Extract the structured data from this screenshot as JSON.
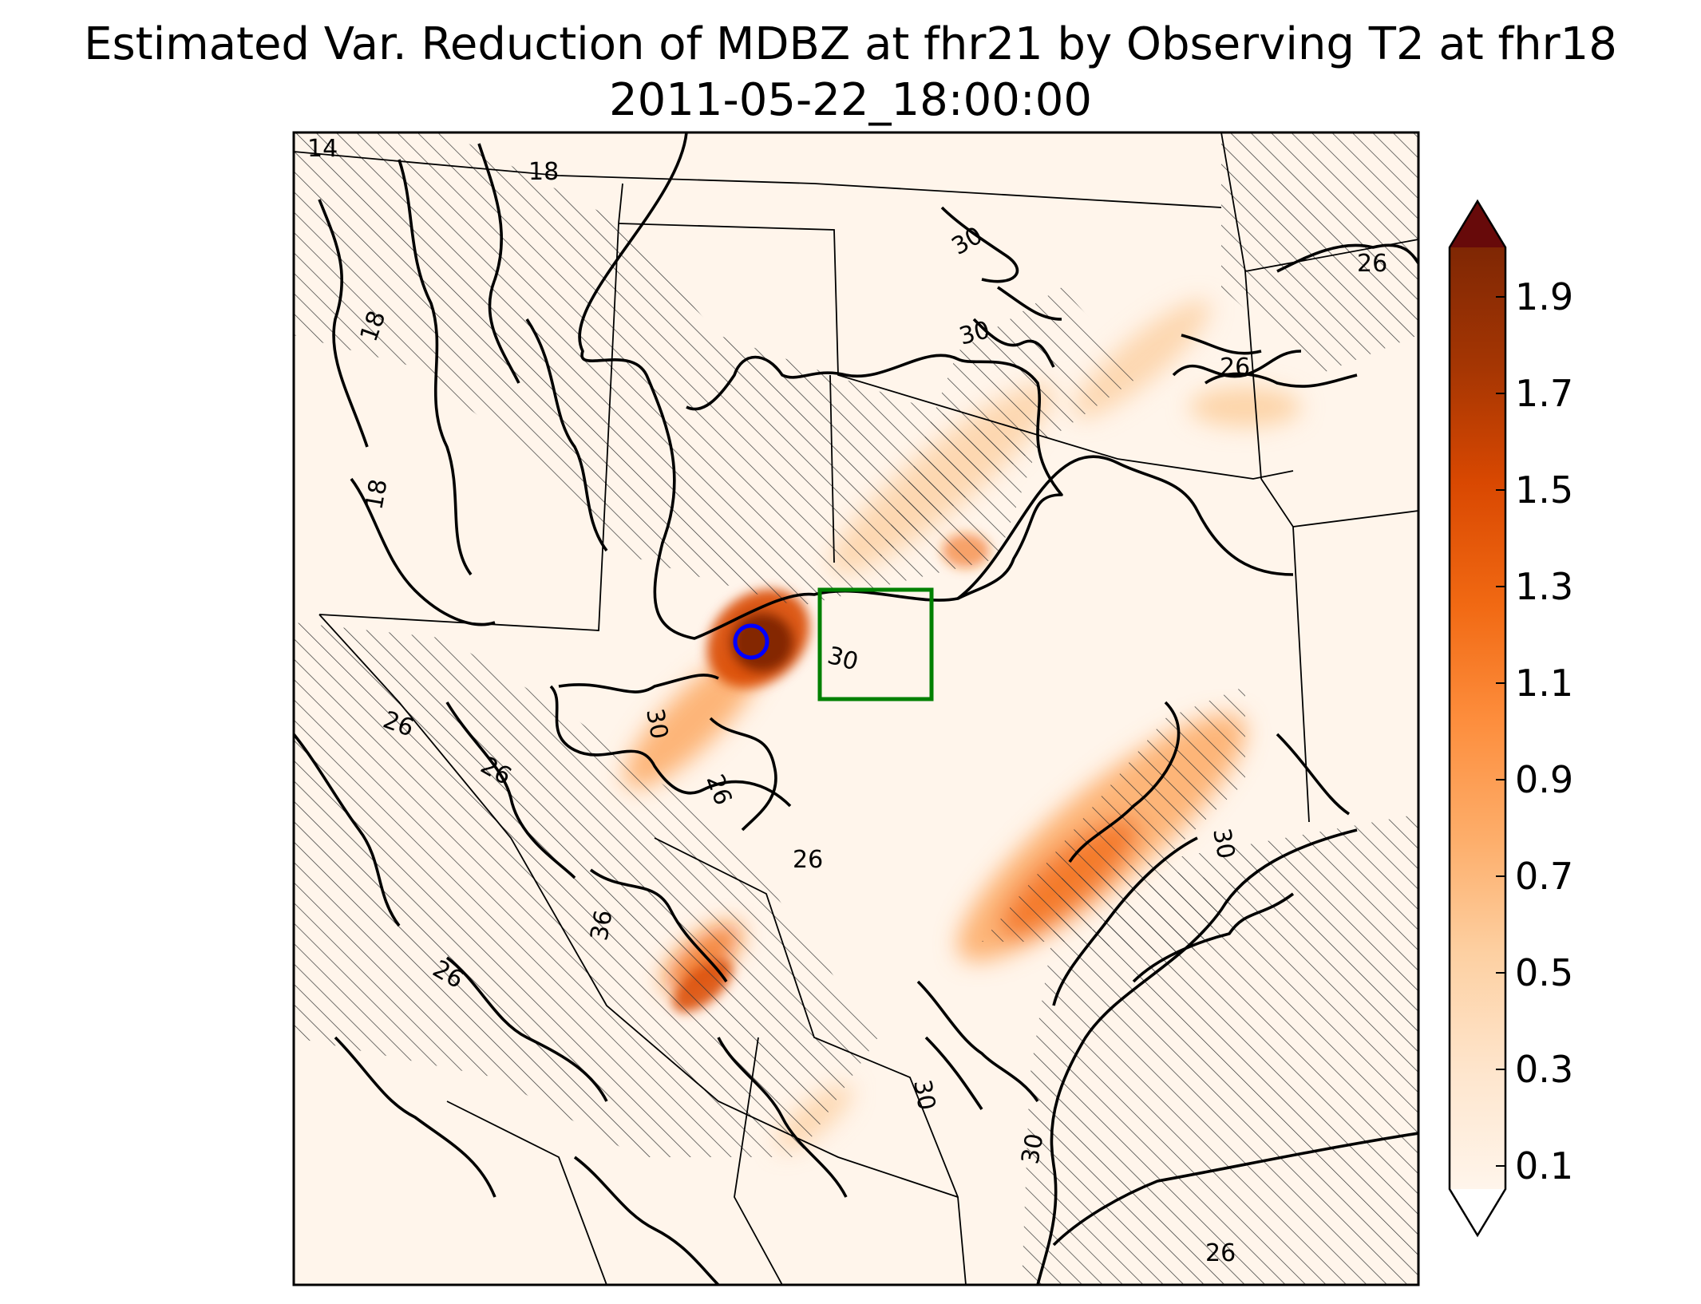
{
  "title": {
    "line1": "Estimated Var. Reduction of MDBZ at fhr21 by Observing T2 at fhr18",
    "line2": "2011-05-22_18:00:00"
  },
  "colorbar": {
    "tick_labels": [
      "1.9",
      "1.7",
      "1.5",
      "1.3",
      "1.1",
      "0.9",
      "0.7",
      "0.5",
      "0.3",
      "0.1"
    ],
    "colors": [
      "#fff5eb",
      "#fee6ce",
      "#fdd0a2",
      "#fdae6b",
      "#fd8d3c",
      "#f16913",
      "#d94801",
      "#a63603",
      "#7f2704"
    ]
  },
  "contour_labels": [
    "14",
    "18",
    "18",
    "18",
    "26",
    "26",
    "26",
    "26",
    "26",
    "26",
    "26",
    "26",
    "30",
    "30",
    "30",
    "30",
    "30",
    "30",
    "30",
    "36"
  ],
  "markers": {
    "observation_circle_color": "#0000ff",
    "target_box_color": "#008000"
  },
  "hatching": "diagonal"
}
